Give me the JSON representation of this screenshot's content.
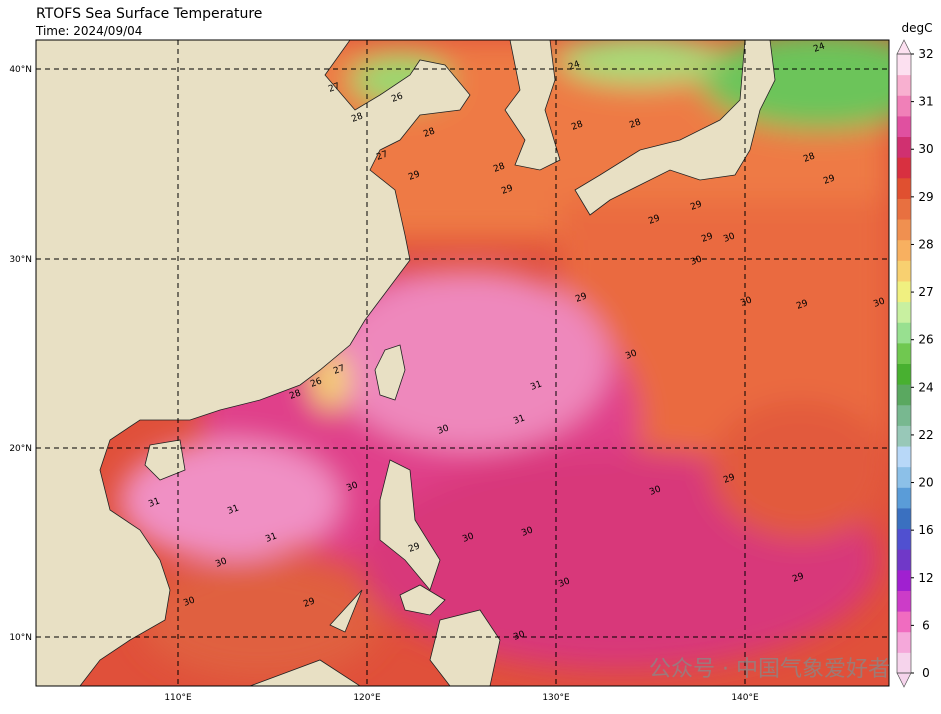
{
  "header": {
    "title": "RTOFS Sea Surface Temperature",
    "subtitle": "Time: 2024/09/04"
  },
  "map": {
    "lon_ticks": [
      "110°E",
      "120°E",
      "130°E",
      "140°E"
    ],
    "lat_ticks": [
      "40°N",
      "30°N",
      "20°N",
      "10°N"
    ],
    "contour_labels": [
      27,
      28,
      26,
      28,
      29,
      27,
      28,
      29,
      28,
      28,
      29,
      29,
      30,
      29,
      30,
      28,
      29,
      29,
      30,
      30,
      29,
      30,
      31,
      31,
      30,
      31,
      31,
      30,
      30,
      30,
      29,
      30,
      30,
      29,
      29,
      30,
      30,
      29,
      30,
      27,
      28,
      26,
      24,
      24,
      31
    ]
  },
  "colorbar": {
    "unit": "degC",
    "ticks": [
      0,
      6,
      12,
      16,
      20,
      22,
      24,
      26,
      27,
      28,
      29,
      30,
      31,
      32
    ],
    "colors": [
      "#f6d4ec",
      "#f5a8da",
      "#f06cc0",
      "#cc3cc8",
      "#a020d0",
      "#7038c8",
      "#5050d0",
      "#3a70c0",
      "#5a9cd8",
      "#8cc0e8",
      "#b8d8f8",
      "#98c8b8",
      "#78b890",
      "#5aa860",
      "#48b030",
      "#70c850",
      "#98e090",
      "#c8f0a0",
      "#f0f080",
      "#f8d070",
      "#f8b060",
      "#f09050",
      "#e87040",
      "#e05030",
      "#d83040",
      "#d03070",
      "#e050a0",
      "#f080b8",
      "#f8b0d0",
      "#fce0f0"
    ]
  },
  "watermark": "公众号 · 中国气象爱好者"
}
